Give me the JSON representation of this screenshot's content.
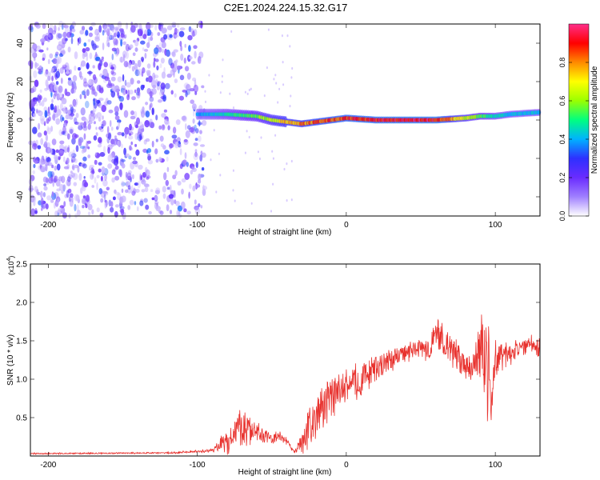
{
  "title": "C2E1.2024.224.15.32.G17",
  "colors": {
    "snr_line": "#e8322e",
    "colormap": [
      "#ffffff",
      "#a080ff",
      "#6a2cff",
      "#2e30ff",
      "#00b2ff",
      "#00ff80",
      "#9aff00",
      "#ffff00",
      "#ff8a00",
      "#ff0000",
      "#ff2e8a"
    ]
  },
  "chart_data": [
    {
      "type": "heatmap",
      "name": "spectrogram",
      "xlabel": "Height of straight line (km)",
      "ylabel": "Frequency (Hz)",
      "xlim": [
        -212,
        130
      ],
      "ylim": [
        -50,
        50
      ],
      "x_ticks": [
        -200,
        -100,
        0,
        100
      ],
      "y_ticks": [
        -40,
        -20,
        0,
        20,
        40
      ],
      "colorbar": {
        "label": "Normalized spectral amplitude",
        "range": [
          0,
          1
        ],
        "ticks": [
          0.0,
          0.2,
          0.4,
          0.6,
          0.8
        ]
      },
      "ridge": {
        "description_points_x": [
          -100,
          -80,
          -60,
          -50,
          -40,
          -30,
          -20,
          0,
          20,
          40,
          60,
          80,
          90,
          100,
          110,
          130
        ],
        "frequency": [
          3,
          3,
          2,
          0,
          -1,
          -2,
          -1,
          1,
          0,
          0,
          0,
          1,
          2,
          2,
          3,
          4
        ],
        "amplitude": [
          0.4,
          0.5,
          0.6,
          0.7,
          0.8,
          0.85,
          0.9,
          0.95,
          0.98,
          1.0,
          1.0,
          0.7,
          0.6,
          0.5,
          0.45,
          0.45
        ]
      },
      "noise_region_x": [
        -212,
        -95
      ]
    },
    {
      "type": "line",
      "name": "snr",
      "xlabel": "Height of straight line (km)",
      "ylabel": "SNR (10 * v/v)",
      "scale_label": "(x10",
      "scale_exp": "4",
      "scale_close": ")",
      "xlim": [
        -212,
        130
      ],
      "ylim": [
        0,
        2.5
      ],
      "x_ticks": [
        -200,
        -100,
        0,
        100
      ],
      "y_ticks": [
        0.5,
        1.0,
        1.5,
        2.0,
        2.5
      ],
      "envelope": {
        "x": [
          -212,
          -120,
          -90,
          -80,
          -72,
          -66,
          -60,
          -50,
          -45,
          -40,
          -35,
          -30,
          -25,
          -20,
          -10,
          0,
          10,
          20,
          30,
          40,
          50,
          55,
          60,
          65,
          70,
          75,
          80,
          85,
          90,
          93,
          95,
          97,
          100,
          105,
          110,
          115,
          120,
          125,
          130
        ],
        "mean": [
          0.03,
          0.04,
          0.07,
          0.2,
          0.35,
          0.4,
          0.3,
          0.22,
          0.25,
          0.2,
          0.05,
          0.15,
          0.4,
          0.55,
          0.75,
          0.9,
          1.0,
          1.15,
          1.25,
          1.35,
          1.4,
          1.4,
          1.55,
          1.5,
          1.4,
          1.3,
          1.2,
          1.2,
          1.3,
          1.5,
          0.9,
          0.9,
          1.2,
          1.3,
          1.35,
          1.4,
          1.45,
          1.45,
          1.4
        ],
        "spread": [
          0.01,
          0.01,
          0.02,
          0.18,
          0.25,
          0.25,
          0.15,
          0.06,
          0.08,
          0.06,
          0.02,
          0.15,
          0.25,
          0.3,
          0.25,
          0.25,
          0.22,
          0.18,
          0.15,
          0.12,
          0.12,
          0.2,
          0.22,
          0.2,
          0.22,
          0.2,
          0.2,
          0.2,
          0.35,
          0.9,
          0.8,
          0.7,
          0.3,
          0.2,
          0.15,
          0.12,
          0.12,
          0.12,
          0.15
        ]
      }
    }
  ]
}
